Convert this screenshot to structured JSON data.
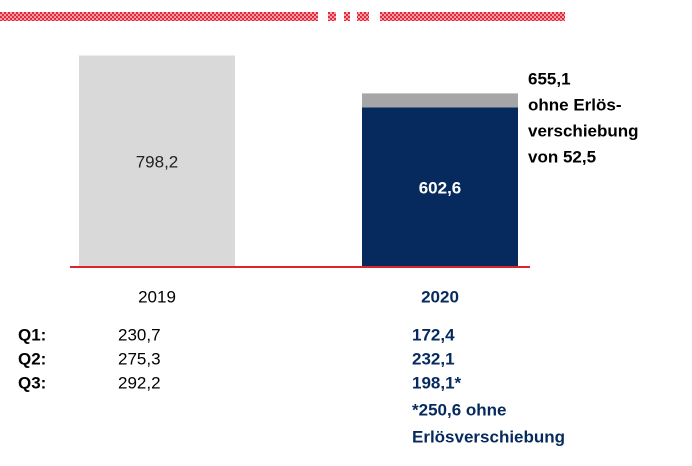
{
  "chart_data": {
    "type": "bar",
    "categories": [
      "2019",
      "2020"
    ],
    "series": [
      {
        "color": [
          "#d9d9d9",
          "#062a5e"
        ],
        "values": [
          798.2,
          602.6
        ],
        "value_labels": [
          "798,2",
          "602,6"
        ]
      },
      {
        "color": "#a6a6a6",
        "values": [
          null,
          52.5
        ]
      }
    ],
    "ylim": [
      0,
      800
    ],
    "annotation": [
      "655,1",
      "ohne Erlös-",
      "verschiebung",
      "von 52,5"
    ]
  },
  "table": {
    "rows": [
      [
        "Q1:",
        "230,7",
        "172,4"
      ],
      [
        "Q2:",
        "275,3",
        "232,1"
      ],
      [
        "Q3:",
        "292,2",
        "198,1*"
      ]
    ],
    "footnote": [
      "*250,6 ohne",
      "Erlösverschiebung"
    ]
  }
}
